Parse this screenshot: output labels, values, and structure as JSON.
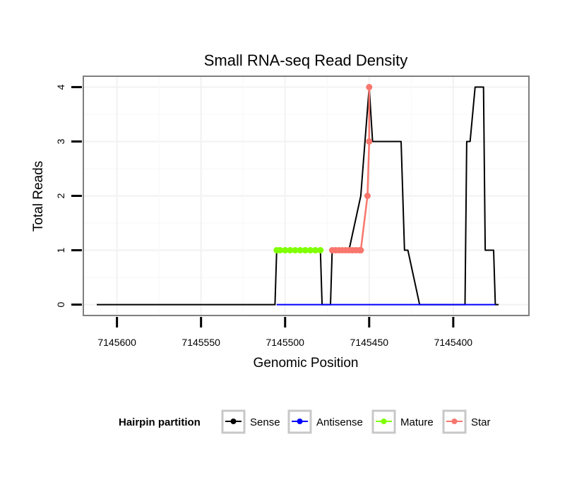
{
  "chart_data": {
    "type": "line",
    "title": "Small RNA-seq Read Density",
    "xlabel": "Genomic Position",
    "ylabel": "Total Reads",
    "x_reversed": true,
    "xlim": [
      7145620,
      7145355
    ],
    "ylim": [
      -0.2,
      4.2
    ],
    "x_ticks": [
      7145600,
      7145550,
      7145500,
      7145450,
      7145400
    ],
    "x_tick_labels": [
      "7145600",
      "7145550",
      "7145500",
      "7145450",
      "7145400"
    ],
    "y_ticks": [
      0,
      1,
      2,
      3,
      4
    ],
    "y_tick_labels": [
      "0",
      "1",
      "2",
      "3",
      "4"
    ],
    "grid": true,
    "legend_position": "bottom",
    "legend_title": "Hairpin partition",
    "series": [
      {
        "name": "Sense",
        "color": "#000000",
        "markers": false,
        "x": [
          7145612,
          7145506,
          7145505,
          7145479,
          7145478,
          7145473,
          7145472,
          7145462,
          7145455,
          7145450,
          7145448,
          7145445,
          7145434,
          7145431,
          7145429,
          7145427,
          7145420,
          7145419,
          7145418,
          7145413,
          7145404,
          7145393,
          7145392,
          7145390,
          7145387,
          7145382,
          7145381,
          7145376,
          7145375,
          7145373
        ],
        "y": [
          0,
          0,
          1,
          1,
          0,
          0,
          1,
          1,
          2,
          4,
          3,
          3,
          3,
          3,
          1,
          1,
          0,
          0,
          0,
          0,
          0,
          0,
          3,
          3,
          4,
          4,
          1,
          1,
          0,
          0
        ]
      },
      {
        "name": "Antisense",
        "color": "#0000ff",
        "markers": false,
        "x": [
          7145505,
          7145375
        ],
        "y": [
          0,
          0
        ]
      },
      {
        "name": "Mature",
        "color": "#7fff00",
        "markers": true,
        "x": [
          7145505,
          7145503,
          7145500,
          7145497,
          7145494,
          7145491,
          7145488,
          7145485,
          7145482,
          7145479
        ],
        "y": [
          1,
          1,
          1,
          1,
          1,
          1,
          1,
          1,
          1,
          1
        ]
      },
      {
        "name": "Star",
        "color": "#f8766d",
        "markers": true,
        "x": [
          7145472,
          7145470,
          7145468,
          7145466,
          7145464,
          7145462,
          7145460,
          7145458,
          7145456,
          7145455,
          7145451,
          7145450,
          7145450
        ],
        "y": [
          1,
          1,
          1,
          1,
          1,
          1,
          1,
          1,
          1,
          1,
          2,
          3,
          4
        ]
      }
    ]
  }
}
